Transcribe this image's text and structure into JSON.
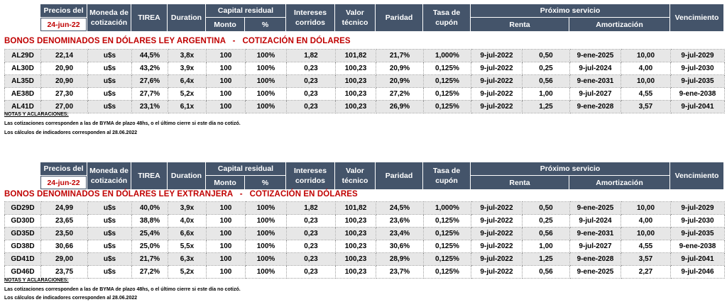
{
  "header": {
    "precios_del": "Precios del",
    "fecha": "24-jun-22",
    "moneda": "Moneda de cotización",
    "tirea": "TIREA",
    "duration": "Duration",
    "capital_residual": "Capital residual",
    "monto": "Monto",
    "pct": "%",
    "intereses": "Intereses corridos",
    "valor_tecnico": "Valor técnico",
    "paridad": "Paridad",
    "tasa_cupon": "Tasa de cupón",
    "proximo_servicio": "Próximo servicio",
    "renta": "Renta",
    "amortizacion": "Amortización",
    "vencimiento": "Vencimiento"
  },
  "blocks": [
    {
      "title": "BONOS DENOMINADOS EN DÓLARES LEY ARGENTINA   -   COTIZACIÓN EN DÓLARES",
      "rows": [
        [
          "AL29D",
          "22,14",
          "u$s",
          "44,5%",
          "3,8x",
          "100",
          "100%",
          "1,82",
          "101,82",
          "21,7%",
          "1,000%",
          "9-jul-2022",
          "0,50",
          "9-ene-2025",
          "10,00",
          "9-jul-2029"
        ],
        [
          "AL30D",
          "20,90",
          "u$s",
          "43,2%",
          "3,9x",
          "100",
          "100%",
          "0,23",
          "100,23",
          "20,9%",
          "0,125%",
          "9-jul-2022",
          "0,25",
          "9-jul-2024",
          "4,00",
          "9-jul-2030"
        ],
        [
          "AL35D",
          "20,90",
          "u$s",
          "27,6%",
          "6,4x",
          "100",
          "100%",
          "0,23",
          "100,23",
          "20,9%",
          "0,125%",
          "9-jul-2022",
          "0,56",
          "9-ene-2031",
          "10,00",
          "9-jul-2035"
        ],
        [
          "AE38D",
          "27,30",
          "u$s",
          "27,7%",
          "5,2x",
          "100",
          "100%",
          "0,23",
          "100,23",
          "27,2%",
          "0,125%",
          "9-jul-2022",
          "1,00",
          "9-jul-2027",
          "4,55",
          "9-ene-2038"
        ],
        [
          "AL41D",
          "27,00",
          "u$s",
          "23,1%",
          "6,1x",
          "100",
          "100%",
          "0,23",
          "100,23",
          "26,9%",
          "0,125%",
          "9-jul-2022",
          "1,25",
          "9-ene-2028",
          "3,57",
          "9-jul-2041"
        ]
      ],
      "notes_title": "NOTAS Y ACLARACIONES:",
      "note_1": "Las cotizaciones corresponden a las de BYMA de plazo 48hs, o el último cierre si este día no cotizó.",
      "note_2": "Los cálculos de indicadores corresponden al 28.06.2022"
    },
    {
      "title": "BONOS DENOMINADOS EN DÓLARES LEY EXTRANJERA   -   COTIZACIÓN EN DÓLARES",
      "rows": [
        [
          "GD29D",
          "24,99",
          "u$s",
          "40,0%",
          "3,9x",
          "100",
          "100%",
          "1,82",
          "101,82",
          "24,5%",
          "1,000%",
          "9-jul-2022",
          "0,50",
          "9-ene-2025",
          "10,00",
          "9-jul-2029"
        ],
        [
          "GD30D",
          "23,65",
          "u$s",
          "38,8%",
          "4,0x",
          "100",
          "100%",
          "0,23",
          "100,23",
          "23,6%",
          "0,125%",
          "9-jul-2022",
          "0,25",
          "9-jul-2024",
          "4,00",
          "9-jul-2030"
        ],
        [
          "GD35D",
          "23,50",
          "u$s",
          "25,4%",
          "6,6x",
          "100",
          "100%",
          "0,23",
          "100,23",
          "23,4%",
          "0,125%",
          "9-jul-2022",
          "0,56",
          "9-ene-2031",
          "10,00",
          "9-jul-2035"
        ],
        [
          "GD38D",
          "30,66",
          "u$s",
          "25,0%",
          "5,5x",
          "100",
          "100%",
          "0,23",
          "100,23",
          "30,6%",
          "0,125%",
          "9-jul-2022",
          "1,00",
          "9-jul-2027",
          "4,55",
          "9-ene-2038"
        ],
        [
          "GD41D",
          "29,00",
          "u$s",
          "21,7%",
          "6,3x",
          "100",
          "100%",
          "0,23",
          "100,23",
          "28,9%",
          "0,125%",
          "9-jul-2022",
          "1,25",
          "9-ene-2028",
          "3,57",
          "9-jul-2041"
        ],
        [
          "GD46D",
          "23,75",
          "u$s",
          "27,2%",
          "5,2x",
          "100",
          "100%",
          "0,23",
          "100,23",
          "23,7%",
          "0,125%",
          "9-jul-2022",
          "0,56",
          "9-ene-2025",
          "2,27",
          "9-jul-2046"
        ]
      ],
      "notes_title": "NOTAS Y ACLARACIONES:",
      "note_1": "Las cotizaciones corresponden a las de BYMA de plazo 48hs, o el último cierre si este día no cotizó.",
      "note_2": "Los cálculos de indicadores corresponden al 28.06.2022"
    }
  ],
  "colors": {
    "header_bg": "#44546a",
    "header_text": "#ffffff",
    "title_red": "#c00000",
    "row_alt": "#e7e7e7"
  }
}
